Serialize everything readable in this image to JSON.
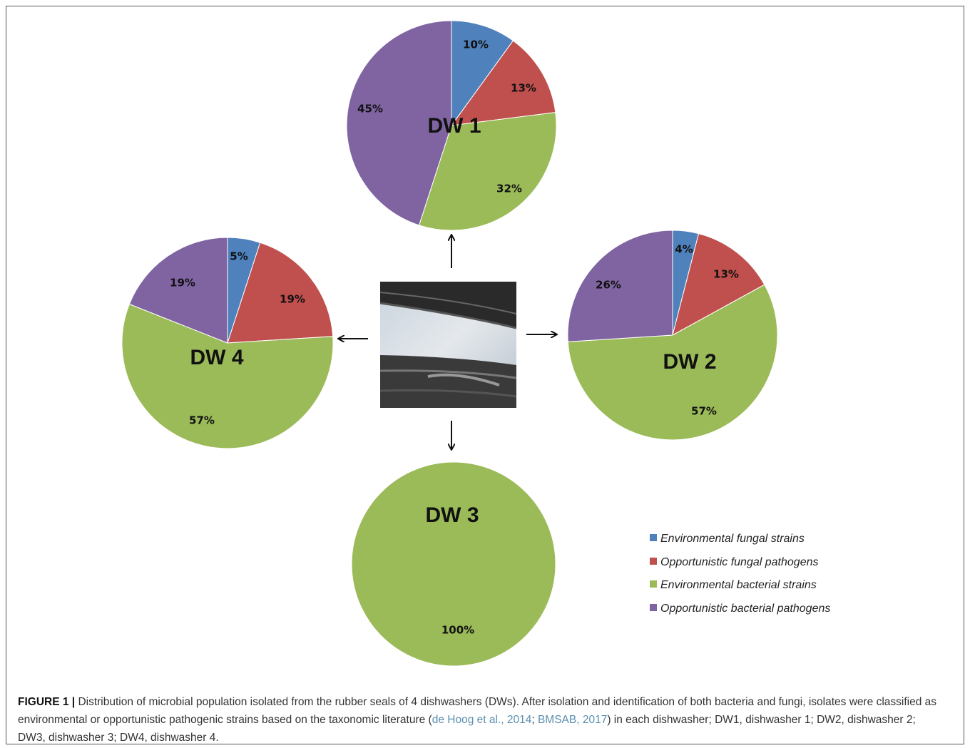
{
  "colors": {
    "environmental_fungal": "#4f81bd",
    "opportunistic_fungal": "#c0504d",
    "environmental_bacterial": "#9bbb59",
    "opportunistic_bacterial": "#8064a2",
    "caption_link": "#5b8fb0"
  },
  "chart_data": [
    {
      "type": "pie",
      "title": "DW 1",
      "categories": [
        "Environmental fungal strains",
        "Opportunistic fungal pathogens",
        "Environmental bacterial strains",
        "Opportunistic bacterial pathogens"
      ],
      "values": [
        10,
        13,
        32,
        45
      ],
      "labels": [
        "10%",
        "13%",
        "32%",
        "45%"
      ]
    },
    {
      "type": "pie",
      "title": "DW 2",
      "categories": [
        "Environmental fungal strains",
        "Opportunistic fungal pathogens",
        "Environmental bacterial strains",
        "Opportunistic bacterial pathogens"
      ],
      "values": [
        4,
        13,
        57,
        26
      ],
      "labels": [
        "4%",
        "13%",
        "57%",
        "26%"
      ]
    },
    {
      "type": "pie",
      "title": "DW 3",
      "categories": [
        "Environmental fungal strains",
        "Opportunistic fungal pathogens",
        "Environmental bacterial strains",
        "Opportunistic bacterial pathogens"
      ],
      "values": [
        0,
        0,
        100,
        0
      ],
      "labels": [
        "",
        "",
        "100%",
        ""
      ]
    },
    {
      "type": "pie",
      "title": "DW 4",
      "categories": [
        "Environmental fungal strains",
        "Opportunistic fungal pathogens",
        "Environmental bacterial strains",
        "Opportunistic bacterial pathogens"
      ],
      "values": [
        5,
        19,
        57,
        19
      ],
      "labels": [
        "5%",
        "19%",
        "57%",
        "19%"
      ]
    }
  ],
  "legend": {
    "items": [
      "Environmental fungal strains",
      "Opportunistic fungal pathogens",
      "Environmental bacterial strains",
      "Opportunistic bacterial pathogens"
    ]
  },
  "caption": {
    "label": "FIGURE 1 |",
    "text_1": " Distribution of microbial population isolated from the rubber seals of 4 dishwashers (DWs). After isolation and identification of both bacteria and fungi, isolates were classified as environmental or opportunistic pathogenic strains based on the taxonomic literature (",
    "ref_1": "de Hoog et al., 2014",
    "text_2": "; ",
    "ref_2": "BMSAB, 2017",
    "text_3": ") in each dishwasher; DW1, dishwasher 1; DW2, dishwasher 2; DW3, dishwasher 3; DW4, dishwasher 4."
  }
}
